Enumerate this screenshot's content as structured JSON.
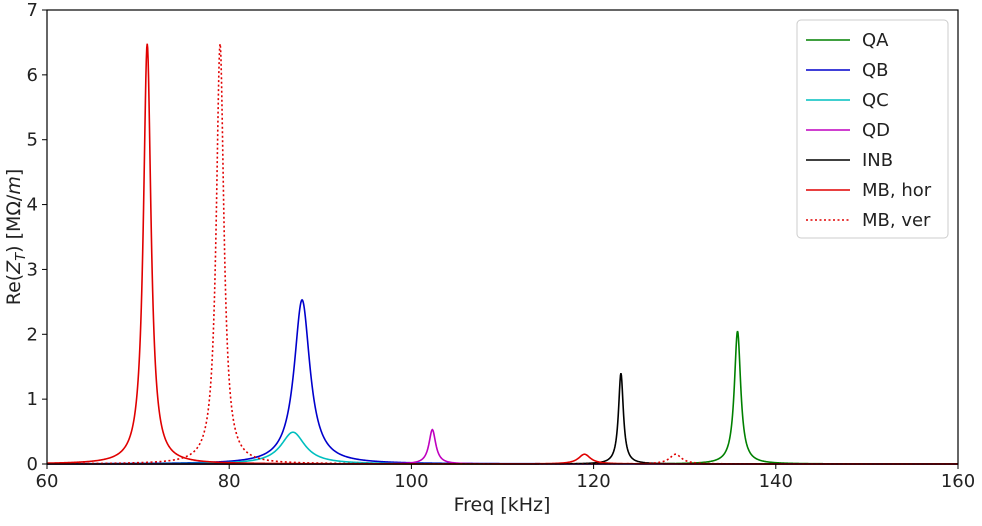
{
  "chart_data": {
    "type": "line",
    "title": "",
    "xlabel": "Freq [kHz]",
    "ylabel": "Re(Z_T) [MΩ/m]",
    "xlim": [
      60,
      160
    ],
    "ylim": [
      0,
      7
    ],
    "xticks": [
      "60",
      "80",
      "100",
      "120",
      "140",
      "160"
    ],
    "yticks": [
      "0",
      "1",
      "2",
      "3",
      "4",
      "5",
      "6",
      "7"
    ],
    "grid": false,
    "legend_position": "top-right",
    "series": [
      {
        "name": "QA",
        "color": "#008000",
        "style": "solid",
        "peaks": [
          {
            "f0": 135.8,
            "amp": 2.05,
            "gamma": 0.42
          }
        ]
      },
      {
        "name": "QB",
        "color": "#0000cc",
        "style": "solid",
        "peaks": [
          {
            "f0": 88.0,
            "amp": 2.53,
            "gamma": 1.05
          }
        ]
      },
      {
        "name": "QC",
        "color": "#00bfbf",
        "style": "solid",
        "peaks": [
          {
            "f0": 87.0,
            "amp": 0.49,
            "gamma": 1.6
          }
        ]
      },
      {
        "name": "QD",
        "color": "#bf00bf",
        "style": "solid",
        "peaks": [
          {
            "f0": 102.3,
            "amp": 0.53,
            "gamma": 0.45
          }
        ]
      },
      {
        "name": "INB",
        "color": "#000000",
        "style": "solid",
        "peaks": [
          {
            "f0": 123.0,
            "amp": 1.4,
            "gamma": 0.32
          }
        ]
      },
      {
        "name": "MB, hor",
        "color": "#e00000",
        "style": "solid",
        "peaks": [
          {
            "f0": 71.0,
            "amp": 6.48,
            "gamma": 0.5
          },
          {
            "f0": 119.0,
            "amp": 0.15,
            "gamma": 0.8
          }
        ]
      },
      {
        "name": "MB, ver",
        "color": "#e00000",
        "style": "dotted",
        "peaks": [
          {
            "f0": 79.0,
            "amp": 6.48,
            "gamma": 0.5
          },
          {
            "f0": 129.0,
            "amp": 0.15,
            "gamma": 0.8
          }
        ]
      }
    ]
  }
}
